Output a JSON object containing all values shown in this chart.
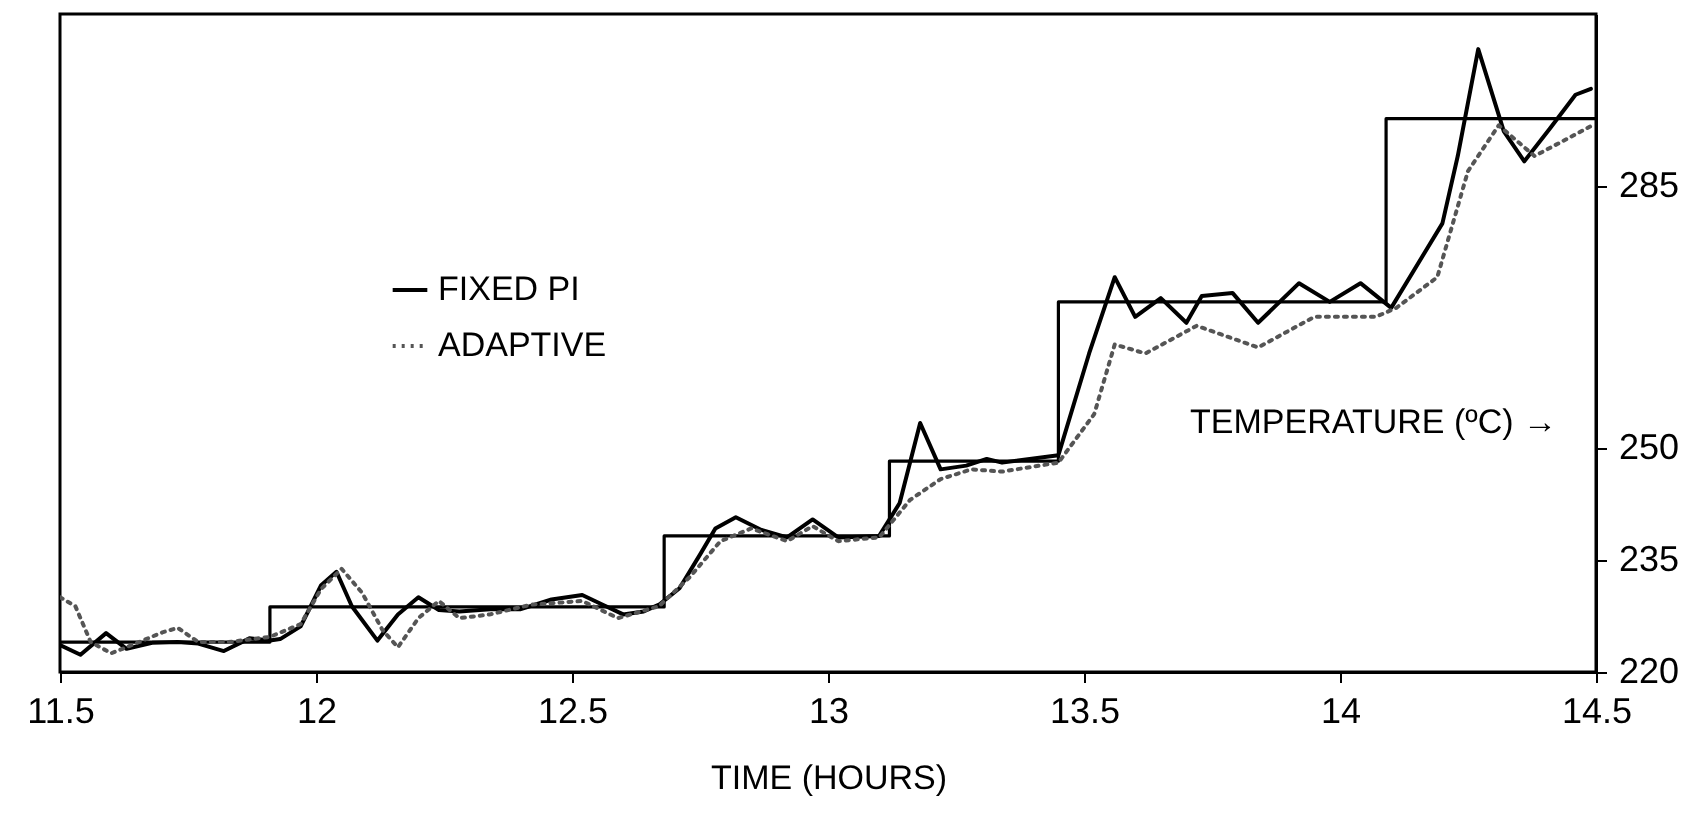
{
  "chart_data": {
    "type": "line",
    "xlabel": "TIME (HOURS)",
    "ylabel": "TEMPERATURE (ºC) →",
    "xlim": [
      11.5,
      14.5
    ],
    "xticks": [
      11.5,
      12,
      12.5,
      13,
      13.5,
      14,
      14.5
    ],
    "ylim": [
      220,
      308
    ],
    "yticks": [
      220,
      235,
      250,
      285
    ],
    "grid": false,
    "legend": "left",
    "marker": "none",
    "series": [
      {
        "type": "step",
        "color": "#000000",
        "line_style": "solid",
        "x": [
          11.5,
          11.91,
          12.68,
          13.12,
          13.45,
          14.09,
          14.5
        ],
        "values": [
          224,
          228.7,
          238.2,
          248.2,
          269.5,
          294,
          294
        ]
      },
      {
        "name": "FIXED PI",
        "color": "#000000",
        "line_style": "solid",
        "x": [
          11.5,
          11.54,
          11.59,
          11.63,
          11.68,
          11.73,
          11.77,
          11.82,
          11.87,
          11.91,
          11.93,
          11.97,
          12.01,
          12.04,
          12.07,
          12.12,
          12.16,
          12.2,
          12.24,
          12.28,
          12.34,
          12.4,
          12.46,
          12.52,
          12.56,
          12.6,
          12.64,
          12.67,
          12.71,
          12.75,
          12.78,
          12.82,
          12.87,
          12.92,
          12.97,
          13.02,
          13.1,
          13.14,
          13.18,
          13.22,
          13.27,
          13.31,
          13.34,
          13.45,
          13.51,
          13.56,
          13.6,
          13.65,
          13.7,
          13.73,
          13.79,
          13.84,
          13.92,
          13.98,
          14.04,
          14.1,
          14.2,
          14.23,
          14.27,
          14.32,
          14.36,
          14.41,
          14.46,
          14.49
        ],
        "values": [
          223.6,
          222.3,
          225.2,
          223.1,
          223.9,
          224,
          223.8,
          222.8,
          224.5,
          224.2,
          224.4,
          226.1,
          231.6,
          233.4,
          228.8,
          224.2,
          227.7,
          230,
          228.3,
          228.1,
          228.4,
          228.4,
          229.7,
          230.3,
          229,
          227.7,
          228.1,
          229,
          231.2,
          235.7,
          239.2,
          240.7,
          239,
          238,
          240.4,
          238,
          238.2,
          242.6,
          253.3,
          247.1,
          247.6,
          248.5,
          248,
          249,
          262.6,
          272.8,
          267.5,
          270,
          266.7,
          270.3,
          270.7,
          266.7,
          272,
          269.5,
          272,
          268.7,
          280,
          289,
          303.3,
          292.3,
          288.3,
          292.7,
          297.2,
          298
        ]
      },
      {
        "name": "ADAPTIVE",
        "color": "#555555",
        "line_style": "dotted",
        "x": [
          11.5,
          11.53,
          11.56,
          11.6,
          11.64,
          11.7,
          11.73,
          11.77,
          11.83,
          11.91,
          11.97,
          12.01,
          12.05,
          12.09,
          12.13,
          12.16,
          12.2,
          12.24,
          12.28,
          12.34,
          12.42,
          12.52,
          12.59,
          12.67,
          12.73,
          12.79,
          12.85,
          12.92,
          12.97,
          13.02,
          13.1,
          13.16,
          13.22,
          13.28,
          13.34,
          13.45,
          13.52,
          13.56,
          13.62,
          13.72,
          13.84,
          13.95,
          14.07,
          14.11,
          14.19,
          14.25,
          14.31,
          14.38,
          14.49
        ],
        "values": [
          230,
          228.8,
          224,
          222.5,
          223.6,
          225.3,
          225.9,
          224,
          224,
          224.7,
          226.4,
          231.1,
          233.8,
          230.6,
          225.6,
          223.3,
          227.2,
          229.5,
          227.2,
          227.7,
          229,
          229.5,
          227.2,
          228.8,
          232.7,
          237.5,
          239.2,
          237.5,
          239.5,
          237.5,
          238,
          243,
          245.8,
          247.1,
          246.8,
          248,
          254.5,
          263.8,
          262.6,
          266.3,
          263.4,
          267.5,
          267.5,
          268.7,
          272.8,
          287,
          293.1,
          289,
          293
        ]
      }
    ]
  }
}
